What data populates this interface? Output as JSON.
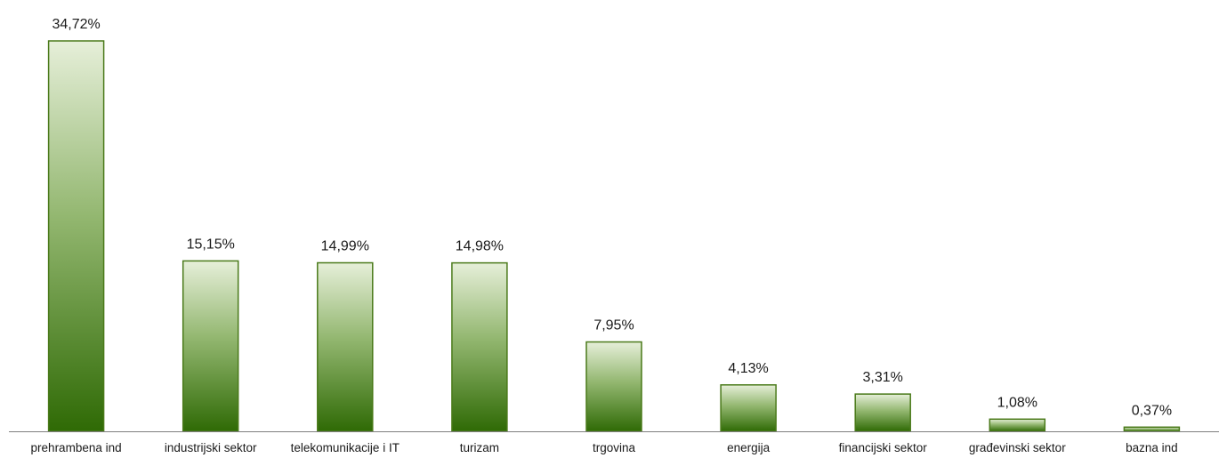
{
  "chart_data": {
    "type": "bar",
    "title": "",
    "xlabel": "",
    "ylabel": "",
    "ylim": [
      0,
      36
    ],
    "grid": false,
    "legend": "none",
    "categories": [
      "prehrambena ind",
      "industrijski sektor",
      "telekomunikacije i IT",
      "turizam",
      "trgovina",
      "energija",
      "financijski sektor",
      "građevinski sektor",
      "bazna ind"
    ],
    "values": [
      34.72,
      15.15,
      14.99,
      14.98,
      7.95,
      4.13,
      3.31,
      1.08,
      0.37
    ],
    "value_labels": [
      "34,72%",
      "15,15%",
      "14,99%",
      "14,98%",
      "7,95%",
      "4,13%",
      "3,31%",
      "1,08%",
      "0,37%"
    ],
    "colors": {
      "bar_top": "#e6efd9",
      "bar_bottom": "#2f6a05",
      "bar_border": "#4a7a1a",
      "axis": "#7f7f7f",
      "text": "#1a1a1a"
    }
  }
}
